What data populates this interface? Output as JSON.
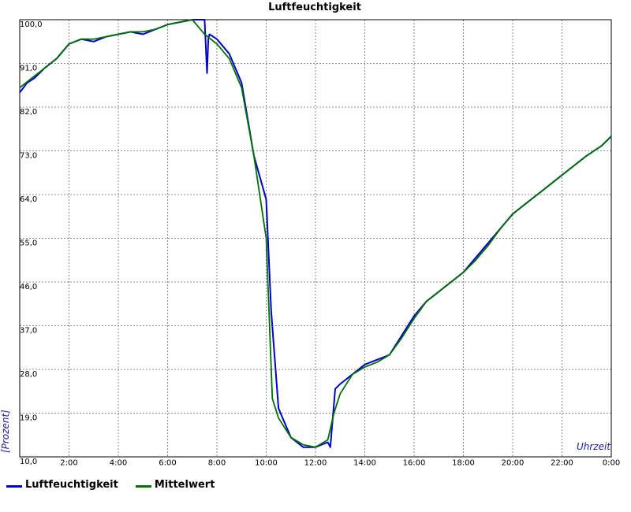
{
  "chart_data": {
    "type": "line",
    "title": "Luftfeuchtigkeit",
    "xlabel": "Uhrzeit",
    "ylabel": "[Prozent]",
    "x_ticks": [
      "2:00",
      "4:00",
      "6:00",
      "8:00",
      "10:00",
      "12:00",
      "14:00",
      "16:00",
      "18:00",
      "20:00",
      "22:00",
      "0:00"
    ],
    "y_ticks": [
      "10,0",
      "19,0",
      "28,0",
      "37,0",
      "46,0",
      "55,0",
      "64,0",
      "73,0",
      "82,0",
      "91,0",
      "100,0"
    ],
    "xlim": [
      0,
      24
    ],
    "ylim": [
      10,
      100
    ],
    "grid": true,
    "legend_position": "bottom-left",
    "series": [
      {
        "name": "Luftfeuchtigkeit",
        "color": "#0000cc",
        "x": [
          0,
          0.3,
          0.6,
          1,
          1.5,
          2,
          2.5,
          3,
          3.5,
          4,
          4.5,
          5,
          5.5,
          6,
          6.5,
          7,
          7.3,
          7.5,
          7.6,
          7.65,
          7.7,
          8,
          8.5,
          9,
          9.5,
          10,
          10.2,
          10.5,
          10.75,
          11,
          11.5,
          12,
          12.5,
          12.6,
          12.8,
          13,
          13.5,
          14,
          14.5,
          15,
          15.5,
          16,
          16.5,
          17,
          17.5,
          18,
          18.5,
          19,
          19.5,
          20,
          20.5,
          21,
          21.5,
          22,
          22.5,
          23,
          23.6,
          24
        ],
        "values": [
          85,
          87,
          88,
          90,
          92,
          95,
          96,
          95.5,
          96.5,
          97,
          97.5,
          97,
          98,
          99,
          99.5,
          100,
          100,
          100,
          89,
          96,
          97,
          96,
          93,
          87,
          72,
          63,
          40,
          20,
          17,
          14,
          12,
          12,
          13,
          12,
          24,
          25,
          27,
          29,
          30,
          31,
          35,
          39,
          42,
          44,
          46,
          48,
          51,
          54,
          57,
          60,
          62,
          64,
          66,
          68,
          70,
          72,
          74,
          76
        ]
      },
      {
        "name": "Mittelwert",
        "color": "#007000",
        "x": [
          0,
          0.5,
          1,
          1.5,
          2,
          2.5,
          3,
          3.5,
          4,
          4.5,
          5,
          5.5,
          6,
          6.5,
          7,
          7.5,
          8,
          8.5,
          9,
          9.5,
          10,
          10.25,
          10.5,
          11,
          11.5,
          12,
          12.5,
          12.75,
          13,
          13.5,
          14,
          14.5,
          15,
          15.5,
          16,
          16.5,
          17,
          17.5,
          18,
          18.5,
          19,
          19.5,
          20,
          20.5,
          21,
          21.5,
          22,
          22.5,
          23,
          23.6,
          24
        ],
        "values": [
          86,
          88,
          90,
          92,
          95,
          96,
          96,
          96.5,
          97,
          97.5,
          97.5,
          98,
          99,
          99.5,
          100,
          97,
          95,
          92,
          86,
          72,
          55,
          22,
          18,
          14,
          12.5,
          12,
          13.5,
          19,
          23,
          27,
          28.5,
          29.5,
          31,
          34.5,
          38.5,
          42,
          44,
          46,
          48,
          50.5,
          53.5,
          57,
          60,
          62,
          64,
          66,
          68,
          70,
          72,
          74,
          76
        ]
      }
    ]
  }
}
